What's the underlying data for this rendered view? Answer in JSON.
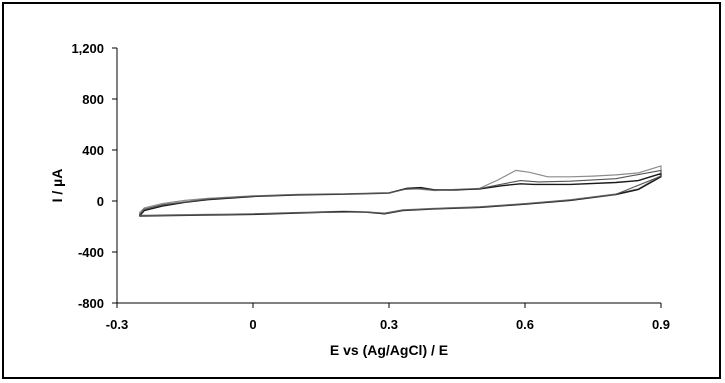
{
  "chart_data": {
    "type": "line",
    "title": "",
    "xlabel": "E vs (Ag/AgCl) / E",
    "ylabel": "I / µA",
    "xlim": [
      -0.3,
      0.9
    ],
    "ylim": [
      -800,
      1200
    ],
    "x_ticks": [
      -0.3,
      0,
      0.3,
      0.6,
      0.9
    ],
    "x_tick_labels": [
      "-0.3",
      "0",
      "0.3",
      "0.6",
      "0.9"
    ],
    "y_ticks": [
      -800,
      -400,
      0,
      400,
      800,
      1200
    ],
    "y_tick_labels": [
      "-800",
      "-400",
      "0",
      "400",
      "800",
      "1,200"
    ],
    "grid": false,
    "legend": "none",
    "series": [
      {
        "color": "#8c8c8c",
        "width": 1.2,
        "points": [
          [
            -0.25,
            -90
          ],
          [
            -0.24,
            -55
          ],
          [
            -0.2,
            -20
          ],
          [
            -0.15,
            5
          ],
          [
            -0.1,
            20
          ],
          [
            0,
            40
          ],
          [
            0.1,
            52
          ],
          [
            0.2,
            56
          ],
          [
            0.3,
            65
          ],
          [
            0.33,
            90
          ],
          [
            0.36,
            95
          ],
          [
            0.4,
            82
          ],
          [
            0.45,
            85
          ],
          [
            0.5,
            100
          ],
          [
            0.54,
            165
          ],
          [
            0.58,
            240
          ],
          [
            0.61,
            225
          ],
          [
            0.65,
            190
          ],
          [
            0.7,
            190
          ],
          [
            0.75,
            195
          ],
          [
            0.8,
            205
          ],
          [
            0.85,
            220
          ],
          [
            0.9,
            275
          ],
          [
            0.9,
            200
          ],
          [
            0.85,
            95
          ],
          [
            0.8,
            55
          ],
          [
            0.7,
            10
          ],
          [
            0.6,
            -20
          ],
          [
            0.5,
            -45
          ],
          [
            0.4,
            -58
          ],
          [
            0.33,
            -70
          ],
          [
            0.29,
            -95
          ],
          [
            0.25,
            -85
          ],
          [
            0.2,
            -80
          ],
          [
            0.1,
            -90
          ],
          [
            0,
            -100
          ],
          [
            -0.1,
            -105
          ],
          [
            -0.2,
            -110
          ],
          [
            -0.25,
            -112
          ]
        ]
      },
      {
        "color": "#1a1a1a",
        "width": 1.4,
        "points": [
          [
            -0.25,
            -115
          ],
          [
            -0.24,
            -75
          ],
          [
            -0.2,
            -40
          ],
          [
            -0.15,
            -10
          ],
          [
            -0.1,
            10
          ],
          [
            0,
            35
          ],
          [
            0.1,
            48
          ],
          [
            0.2,
            53
          ],
          [
            0.3,
            62
          ],
          [
            0.34,
            100
          ],
          [
            0.37,
            105
          ],
          [
            0.4,
            88
          ],
          [
            0.45,
            88
          ],
          [
            0.5,
            95
          ],
          [
            0.55,
            120
          ],
          [
            0.59,
            135
          ],
          [
            0.62,
            130
          ],
          [
            0.7,
            130
          ],
          [
            0.8,
            145
          ],
          [
            0.85,
            160
          ],
          [
            0.9,
            215
          ],
          [
            0.9,
            190
          ],
          [
            0.85,
            90
          ],
          [
            0.8,
            50
          ],
          [
            0.7,
            5
          ],
          [
            0.6,
            -25
          ],
          [
            0.5,
            -50
          ],
          [
            0.4,
            -62
          ],
          [
            0.33,
            -75
          ],
          [
            0.29,
            -100
          ],
          [
            0.25,
            -88
          ],
          [
            0.2,
            -84
          ],
          [
            0.1,
            -94
          ],
          [
            0,
            -105
          ],
          [
            -0.1,
            -110
          ],
          [
            -0.2,
            -115
          ],
          [
            -0.25,
            -118
          ]
        ]
      },
      {
        "color": "#555555",
        "width": 1.1,
        "points": [
          [
            -0.25,
            -105
          ],
          [
            -0.24,
            -65
          ],
          [
            -0.2,
            -30
          ],
          [
            -0.1,
            15
          ],
          [
            0,
            38
          ],
          [
            0.1,
            50
          ],
          [
            0.2,
            55
          ],
          [
            0.3,
            63
          ],
          [
            0.34,
            95
          ],
          [
            0.37,
            98
          ],
          [
            0.4,
            85
          ],
          [
            0.5,
            98
          ],
          [
            0.56,
            140
          ],
          [
            0.59,
            160
          ],
          [
            0.63,
            150
          ],
          [
            0.7,
            155
          ],
          [
            0.8,
            175
          ],
          [
            0.9,
            240
          ],
          [
            0.9,
            195
          ],
          [
            0.8,
            52
          ],
          [
            0.7,
            8
          ],
          [
            0.6,
            -22
          ],
          [
            0.5,
            -48
          ],
          [
            0.4,
            -60
          ],
          [
            0.33,
            -72
          ],
          [
            0.29,
            -97
          ],
          [
            0.25,
            -86
          ],
          [
            0.1,
            -92
          ],
          [
            0,
            -102
          ],
          [
            -0.1,
            -108
          ],
          [
            -0.25,
            -115
          ]
        ]
      }
    ]
  }
}
